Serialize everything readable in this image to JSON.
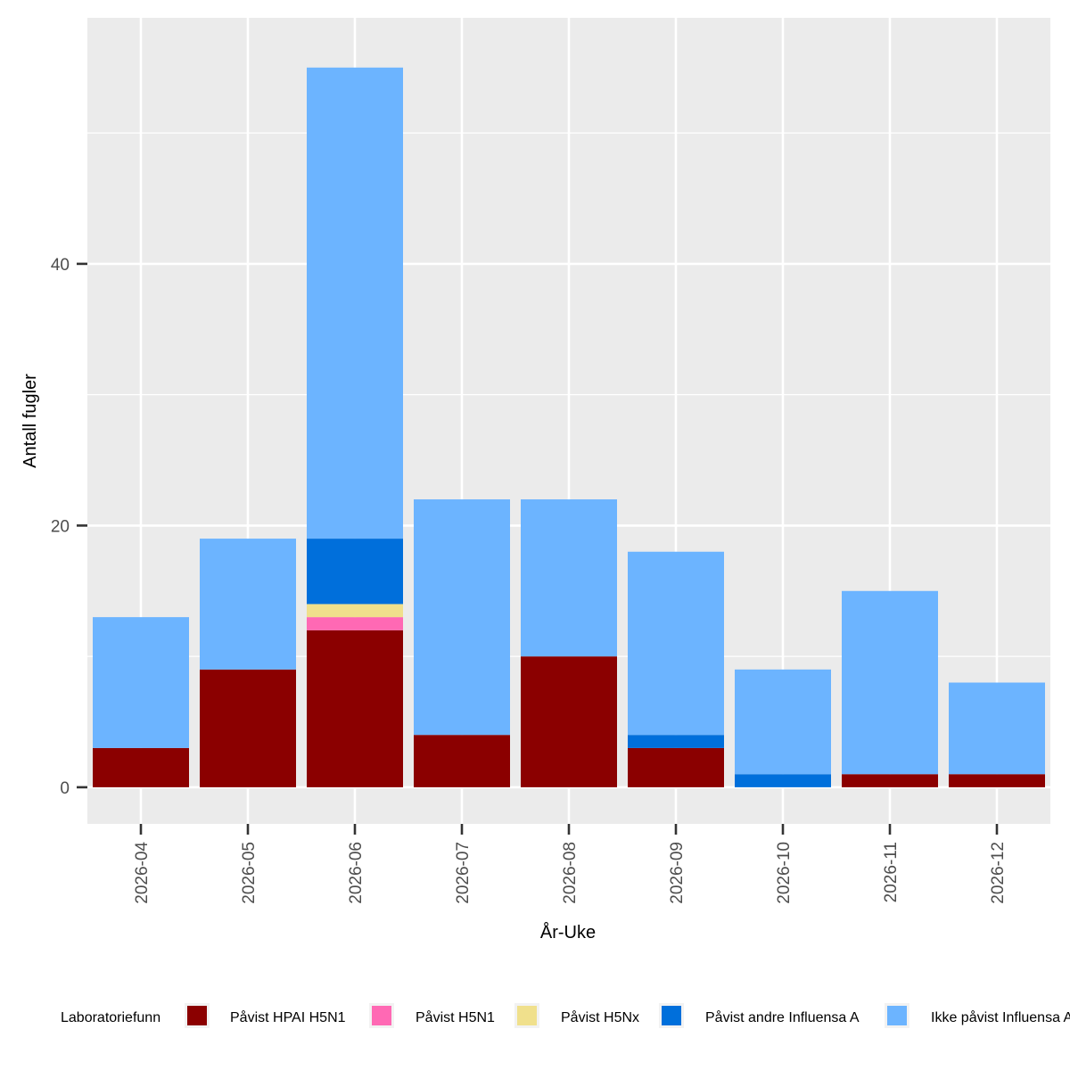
{
  "chart_data": {
    "type": "bar",
    "stacked": true,
    "title": "",
    "xlabel": "År-Uke",
    "ylabel": "Antall fugler",
    "ylim": [
      -2.8,
      58.8
    ],
    "yticks": [
      0,
      20,
      40
    ],
    "categories": [
      "2026-04",
      "2026-05",
      "2026-06",
      "2026-07",
      "2026-08",
      "2026-09",
      "2026-10",
      "2026-11",
      "2026-12"
    ],
    "series": [
      {
        "name": "Påvist HPAI H5N1",
        "color": "#8B0000",
        "values": [
          3,
          9,
          12,
          4,
          10,
          3,
          0,
          1,
          1
        ]
      },
      {
        "name": "Påvist H5N1",
        "color": "#FF69B4",
        "values": [
          0,
          0,
          1,
          0,
          0,
          0,
          0,
          0,
          0
        ]
      },
      {
        "name": "Påvist H5Nx",
        "color": "#F0E08C",
        "values": [
          0,
          0,
          1,
          0,
          0,
          0,
          0,
          0,
          0
        ]
      },
      {
        "name": "Påvist andre Influensa A",
        "color": "#006FDB",
        "values": [
          0,
          0,
          5,
          0,
          0,
          1,
          1,
          0,
          0
        ]
      },
      {
        "name": "Ikke påvist Influensa A",
        "color": "#6CB4FF",
        "values": [
          10,
          10,
          36,
          18,
          12,
          14,
          8,
          14,
          7
        ]
      }
    ],
    "legend": {
      "title": "Laboratoriefunn",
      "position": "bottom"
    },
    "grid": true
  }
}
